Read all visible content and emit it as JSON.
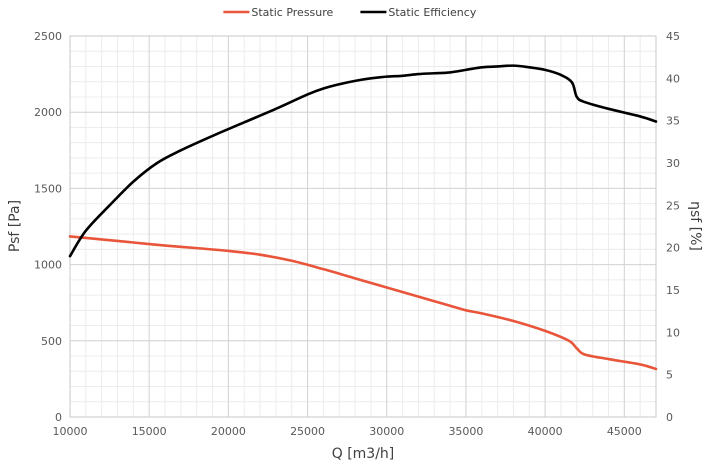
{
  "chart_data": {
    "type": "line",
    "xlabel": "Q [m3/h]",
    "ylabel": "Psf [Pa]",
    "y2label": "ηsf [%]",
    "xlim": [
      10000,
      47000
    ],
    "ylim": [
      0,
      2500
    ],
    "y2lim": [
      0,
      45
    ],
    "xticks": [
      10000,
      15000,
      20000,
      25000,
      30000,
      35000,
      40000,
      45000
    ],
    "yticks": [
      0,
      500,
      1000,
      1500,
      2000,
      2500
    ],
    "y2ticks": [
      0,
      5,
      10,
      15,
      20,
      25,
      30,
      35,
      40,
      45
    ],
    "grid": true,
    "legend": "top-center",
    "series": [
      {
        "name": "Static Pressure",
        "axis": "left",
        "color": "#e8553a",
        "x": [
          10000,
          12000,
          14000,
          16000,
          18000,
          20000,
          22000,
          24000,
          26000,
          28000,
          30000,
          32000,
          34000,
          35000,
          36000,
          38000,
          40000,
          41500,
          42000,
          42500,
          44000,
          46000,
          47000
        ],
        "y": [
          1185,
          1165,
          1145,
          1125,
          1108,
          1090,
          1065,
          1025,
          970,
          910,
          850,
          790,
          730,
          700,
          680,
          630,
          565,
          500,
          450,
          410,
          380,
          345,
          315
        ]
      },
      {
        "name": "Static Efficiency",
        "axis": "right",
        "color": "#000000",
        "x": [
          10000,
          11000,
          12500,
          14000,
          15500,
          17000,
          19000,
          21000,
          23000,
          25000,
          26000,
          27000,
          28000,
          29000,
          30000,
          31000,
          32000,
          33000,
          34000,
          35000,
          36000,
          37000,
          38000,
          39000,
          40000,
          41000,
          41700,
          42000,
          42500,
          44000,
          46000,
          47000
        ],
        "y": [
          19,
          22,
          25,
          27.8,
          30,
          31.5,
          33.2,
          34.8,
          36.4,
          38.1,
          38.8,
          39.3,
          39.7,
          40.0,
          40.2,
          40.3,
          40.5,
          40.6,
          40.7,
          41.0,
          41.3,
          41.4,
          41.5,
          41.3,
          41,
          40.4,
          39.5,
          37.8,
          37.2,
          36.4,
          35.5,
          34.9
        ]
      }
    ]
  }
}
